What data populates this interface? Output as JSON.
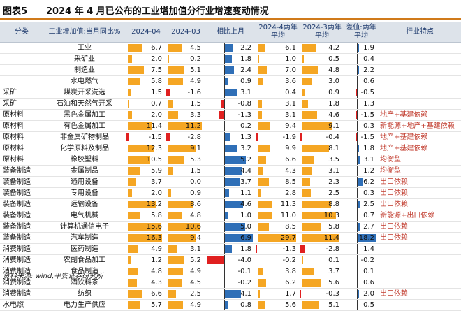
{
  "title": {
    "label": "图表5",
    "text": "2024 年 4 月已公布的工业增加值分行业增速变动情况"
  },
  "headers": [
    "分类",
    "工业增加值:当月同比%",
    "2024-04",
    "2024-03",
    "相比上月",
    "2024-4两年平均",
    "2024-3两年平均",
    "差值:两年平均",
    "行业特点"
  ],
  "colors": {
    "orange": "#f5a623",
    "blue": "#2f6fb7",
    "red": "#e02020",
    "header_bg": "#dde3ea"
  },
  "scales": {
    "apr": 16.3,
    "mar": 11.2,
    "diff": 6.9,
    "apr2": 29.7,
    "mar2": 11.4,
    "d2": 18.2
  },
  "rows": [
    {
      "cat": "",
      "ind": "工业",
      "apr": 6.7,
      "mar": 4.5,
      "diff": 2.2,
      "apr2": 6.1,
      "mar2": 4.2,
      "d2": 1.9,
      "feat": ""
    },
    {
      "cat": "",
      "ind": "采矿业",
      "apr": 2.0,
      "mar": 0.2,
      "diff": 1.8,
      "apr2": 1.0,
      "mar2": 0.5,
      "d2": 0.4,
      "feat": ""
    },
    {
      "cat": "",
      "ind": "制造业",
      "apr": 7.5,
      "mar": 5.1,
      "diff": 2.4,
      "apr2": 7.0,
      "mar2": 4.8,
      "d2": 2.2,
      "feat": ""
    },
    {
      "cat": "",
      "ind": "水电燃气",
      "apr": 5.8,
      "mar": 4.9,
      "diff": 0.9,
      "apr2": 3.6,
      "mar2": 3.0,
      "d2": 0.6,
      "feat": ""
    },
    {
      "cat": "采矿",
      "ind": "煤炭开采洗选",
      "apr": 1.5,
      "mar": -1.6,
      "diff": 3.1,
      "apr2": 0.4,
      "mar2": 0.9,
      "d2": -0.5,
      "feat": ""
    },
    {
      "cat": "采矿",
      "ind": "石油和天然气开采",
      "apr": 0.7,
      "mar": 1.5,
      "diff": -0.8,
      "apr2": 3.1,
      "mar2": 1.8,
      "d2": 1.3,
      "feat": ""
    },
    {
      "cat": "原材料",
      "ind": "黑色金属加工",
      "apr": 2.0,
      "mar": 3.3,
      "diff": -1.3,
      "apr2": 3.1,
      "mar2": 4.6,
      "d2": -1.5,
      "feat": "地产+基建依赖"
    },
    {
      "cat": "原材料",
      "ind": "有色金属加工",
      "apr": 11.4,
      "mar": 11.2,
      "diff": 0.2,
      "apr2": 9.4,
      "mar2": 9.1,
      "d2": 0.3,
      "feat": "新能源+地产+基建依赖"
    },
    {
      "cat": "原材料",
      "ind": "非金属矿物制品",
      "apr": -1.5,
      "mar": -2.8,
      "diff": 1.3,
      "apr2": -1.9,
      "mar2": -0.4,
      "d2": -1.5,
      "feat": "地产+基建依赖"
    },
    {
      "cat": "原材料",
      "ind": "化学原料及制品",
      "apr": 12.3,
      "mar": 9.1,
      "diff": 3.2,
      "apr2": 9.9,
      "mar2": 8.1,
      "d2": 1.8,
      "feat": "地产+基建依赖"
    },
    {
      "cat": "原材料",
      "ind": "橡胶塑料",
      "apr": 10.5,
      "mar": 5.3,
      "diff": 5.2,
      "apr2": 6.6,
      "mar2": 3.5,
      "d2": 3.1,
      "feat": "均衡型"
    },
    {
      "cat": "装备制造",
      "ind": "金属制品",
      "apr": 5.9,
      "mar": 1.5,
      "diff": 4.4,
      "apr2": 4.3,
      "mar2": 3.1,
      "d2": 1.2,
      "feat": "均衡型"
    },
    {
      "cat": "装备制造",
      "ind": "通用设备",
      "apr": 3.7,
      "mar": 0.0,
      "diff": 3.7,
      "apr2": 8.5,
      "mar2": 2.3,
      "d2": 6.2,
      "feat": "出口依赖"
    },
    {
      "cat": "装备制造",
      "ind": "专用设备",
      "apr": 2.0,
      "mar": 0.9,
      "diff": 1.1,
      "apr2": 2.8,
      "mar2": 2.5,
      "d2": 0.3,
      "feat": "出口依赖"
    },
    {
      "cat": "装备制造",
      "ind": "运输设备",
      "apr": 13.2,
      "mar": 8.6,
      "diff": 4.6,
      "apr2": 11.3,
      "mar2": 8.8,
      "d2": 2.5,
      "feat": "出口依赖"
    },
    {
      "cat": "装备制造",
      "ind": "电气机械",
      "apr": 5.8,
      "mar": 4.8,
      "diff": 1.0,
      "apr2": 11.0,
      "mar2": 10.3,
      "d2": 0.7,
      "feat": "新能源+出口依赖"
    },
    {
      "cat": "装备制造",
      "ind": "计算机通信电子",
      "apr": 15.6,
      "mar": 10.6,
      "diff": 5.0,
      "apr2": 8.5,
      "mar2": 5.8,
      "d2": 2.7,
      "feat": "出口依赖"
    },
    {
      "cat": "装备制造",
      "ind": "汽车制造",
      "apr": 16.3,
      "mar": 9.4,
      "diff": 6.9,
      "apr2": 29.7,
      "mar2": 11.4,
      "d2": 18.2,
      "feat": "出口依赖"
    },
    {
      "cat": "消费制造",
      "ind": "医药制造",
      "apr": 4.9,
      "mar": 3.1,
      "diff": 1.8,
      "apr2": -1.3,
      "mar2": -2.8,
      "d2": 1.4,
      "feat": ""
    },
    {
      "cat": "消费制造",
      "ind": "农副食品加工",
      "apr": 1.2,
      "mar": 5.2,
      "diff": -4.0,
      "apr2": -0.2,
      "mar2": 0.1,
      "d2": -0.2,
      "feat": ""
    },
    {
      "cat": "消费制造",
      "ind": "食品制造",
      "apr": 4.8,
      "mar": 4.9,
      "diff": -0.1,
      "apr2": 3.8,
      "mar2": 3.7,
      "d2": 0.1,
      "feat": ""
    },
    {
      "cat": "消费制造",
      "ind": "酒饮料茶",
      "apr": 4.3,
      "mar": 4.5,
      "diff": -0.2,
      "apr2": 6.2,
      "mar2": 5.6,
      "d2": 0.6,
      "feat": ""
    },
    {
      "cat": "消费制造",
      "ind": "纺织",
      "apr": 6.6,
      "mar": 2.5,
      "diff": 4.1,
      "apr2": 1.7,
      "mar2": -0.3,
      "d2": 2.0,
      "feat": "出口依赖"
    },
    {
      "cat": "水电燃",
      "ind": "电力生产供应",
      "apr": 5.7,
      "mar": 4.9,
      "diff": 0.8,
      "apr2": 5.6,
      "mar2": 5.1,
      "d2": 0.5,
      "feat": ""
    }
  ],
  "footer": "资料来源: wind,平安证券研究所"
}
